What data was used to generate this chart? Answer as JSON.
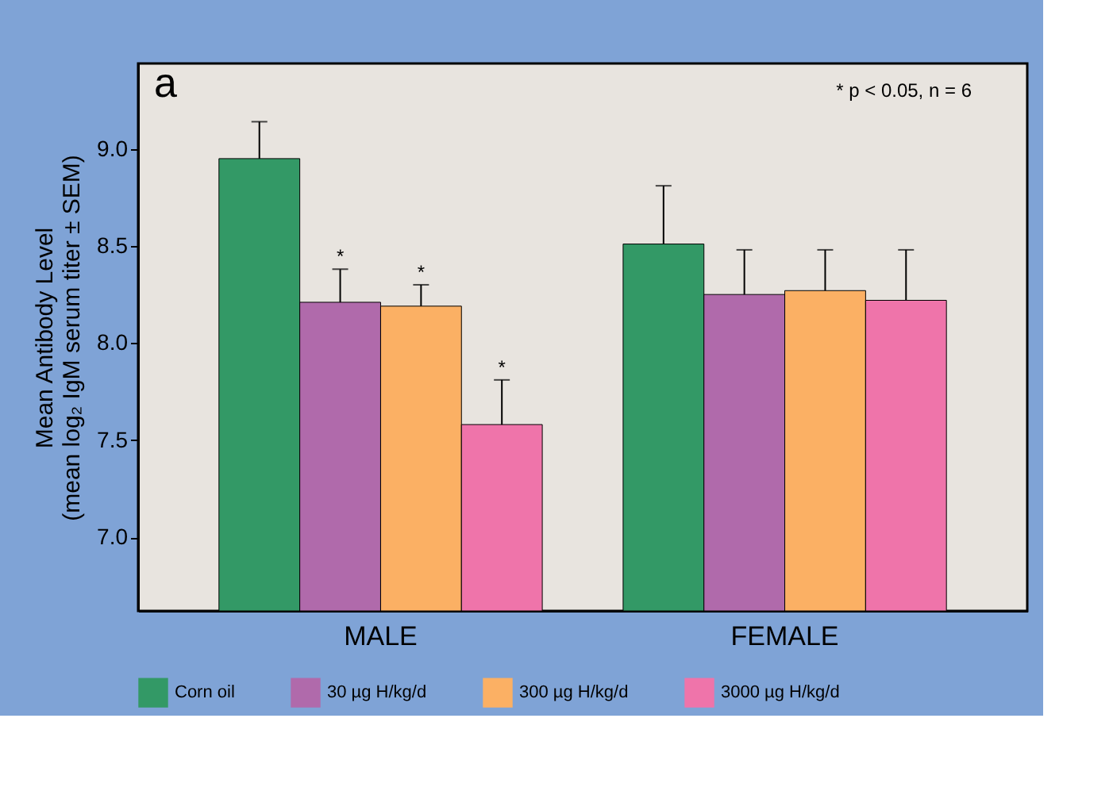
{
  "chart_data": {
    "type": "bar",
    "ylabel": "Mean Antibody Level\n(mean log₂ IgM serum titer ± SEM)",
    "categories": [
      "MALE",
      "FEMALE"
    ],
    "series": [
      {
        "name": "Corn oil",
        "color": "#339966",
        "values": [
          8.95,
          8.51
        ],
        "errors": [
          0.19,
          0.3
        ]
      },
      {
        "name": "30 µg H/kg/d",
        "color": "#b06aab",
        "values": [
          8.21,
          8.25
        ],
        "errors": [
          0.17,
          0.23
        ],
        "value_labels": [
          "*",
          null
        ]
      },
      {
        "name": "300 µg H/kg/d",
        "color": "#fbb064",
        "values": [
          8.19,
          8.27
        ],
        "errors": [
          0.11,
          0.21
        ],
        "value_labels": [
          "*",
          null
        ]
      },
      {
        "name": "3000 µg H/kg/d",
        "color": "#ef74aa",
        "values": [
          7.58,
          8.22
        ],
        "errors": [
          0.23,
          0.26
        ],
        "value_labels": [
          "*",
          null
        ]
      }
    ],
    "ylim": [
      6.62,
      9.44
    ],
    "yticks": [
      {
        "value": 7,
        "label": "7.0"
      },
      {
        "value": 7.5,
        "label": "7.5"
      },
      {
        "value": 8,
        "label": "8.0"
      },
      {
        "value": 8.5,
        "label": "8.5"
      },
      {
        "value": 9,
        "label": "9.0"
      }
    ],
    "annotations": [
      "a",
      "* p < 0.05, n = 6"
    ],
    "legend": "bottom",
    "grid": false
  }
}
